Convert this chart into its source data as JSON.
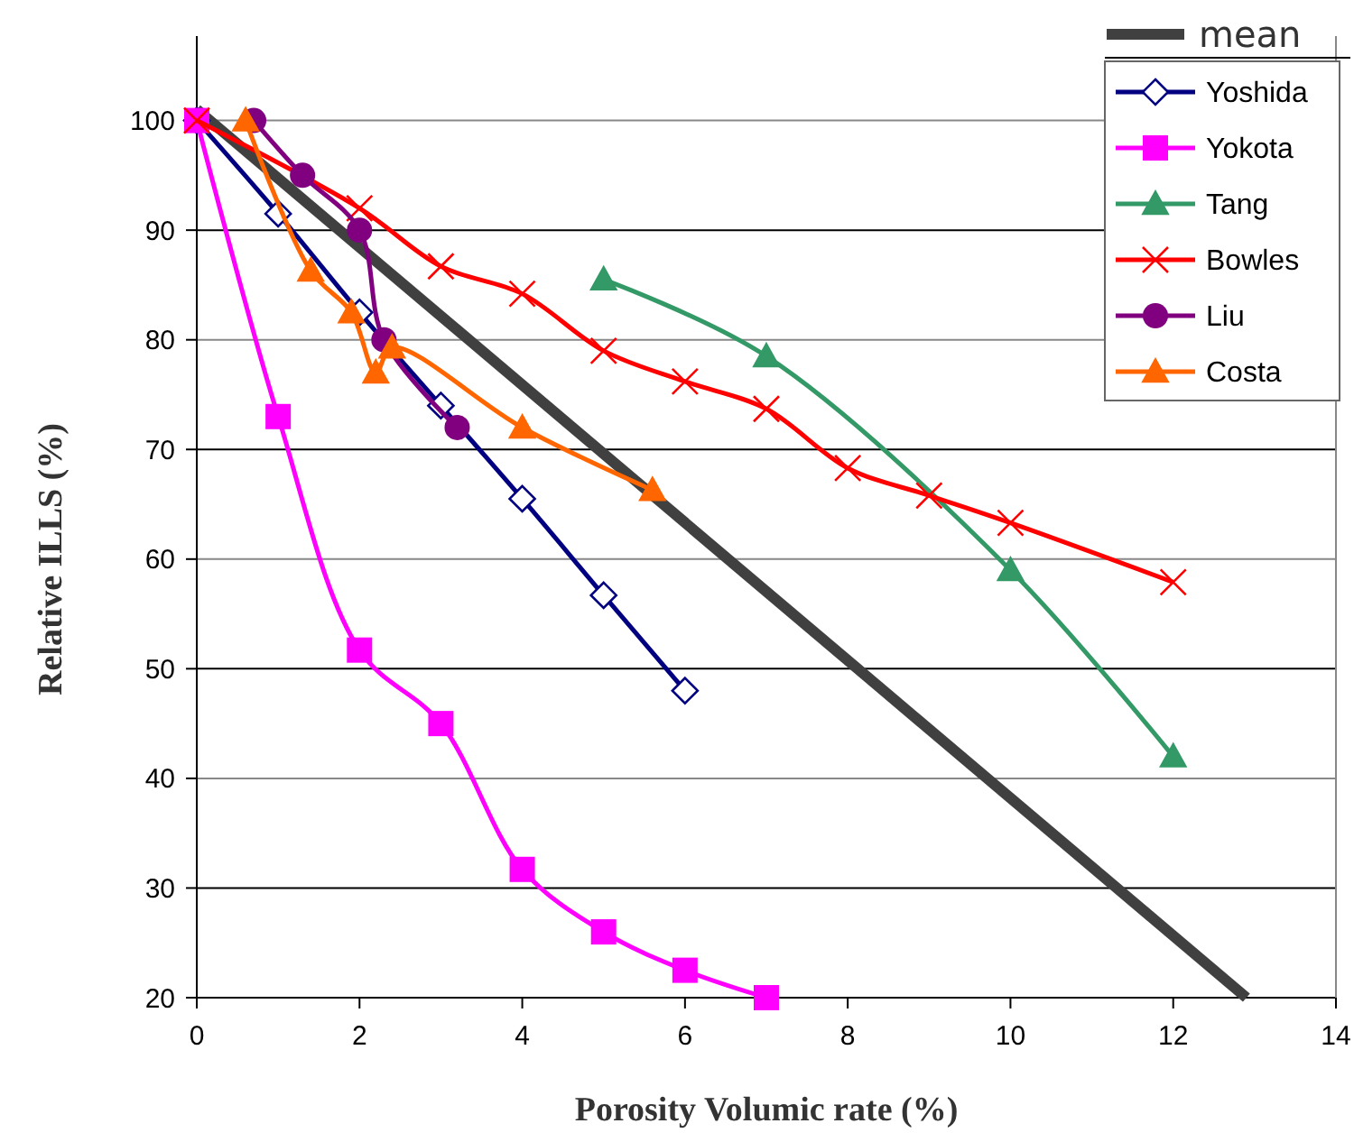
{
  "chart_data": {
    "type": "line",
    "xlabel": "Porosity Volumic rate (%)",
    "ylabel": "Relative ILLS (%)",
    "xlim": [
      0,
      14
    ],
    "xticks": [
      0,
      2,
      4,
      6,
      8,
      10,
      12,
      14
    ],
    "ylim": [
      20,
      107.7
    ],
    "yticks": [
      20,
      30,
      40,
      50,
      60,
      70,
      80,
      90,
      100
    ],
    "grid": "y",
    "legend": "top right",
    "series": [
      {
        "name": "mean",
        "color": "#404040",
        "marker": "none",
        "x": [
          0,
          12.9
        ],
        "values": [
          101,
          20
        ]
      },
      {
        "name": "Yoshida",
        "color": "#000080",
        "marker": "diamond",
        "x": [
          0,
          1,
          2,
          3,
          4,
          5,
          6
        ],
        "values": [
          100,
          91.5,
          82.5,
          74,
          65.5,
          56.7,
          48
        ]
      },
      {
        "name": "Yokota",
        "color": "#ff00ff",
        "marker": "square",
        "x": [
          0,
          1,
          2,
          3,
          4,
          5,
          6,
          7
        ],
        "values": [
          100,
          73,
          51.7,
          45,
          31.7,
          26,
          22.5,
          20
        ]
      },
      {
        "name": "Tang",
        "color": "#339966",
        "marker": "triangle",
        "x": [
          5,
          7,
          10,
          12
        ],
        "values": [
          85.5,
          78.5,
          59,
          42
        ]
      },
      {
        "name": "Bowles",
        "color": "#ff0000",
        "marker": "cross",
        "x": [
          0,
          2,
          3,
          4,
          5,
          6,
          7,
          8,
          9,
          10,
          12
        ],
        "values": [
          100,
          92,
          86.7,
          84.2,
          79,
          76.2,
          73.7,
          68.3,
          65.8,
          63.3,
          57.9
        ]
      },
      {
        "name": "Liu",
        "color": "#800080",
        "marker": "circle",
        "x": [
          0.7,
          1.3,
          2,
          2.3,
          3.2
        ],
        "values": [
          100,
          95,
          90,
          80,
          72
        ]
      },
      {
        "name": "Costa",
        "color": "#ff6600",
        "marker": "triangle",
        "x": [
          0.6,
          1.4,
          1.9,
          2.2,
          2.4,
          4,
          5.6
        ],
        "values": [
          100,
          86.3,
          82.5,
          77,
          79.3,
          72,
          66.3
        ]
      }
    ]
  }
}
